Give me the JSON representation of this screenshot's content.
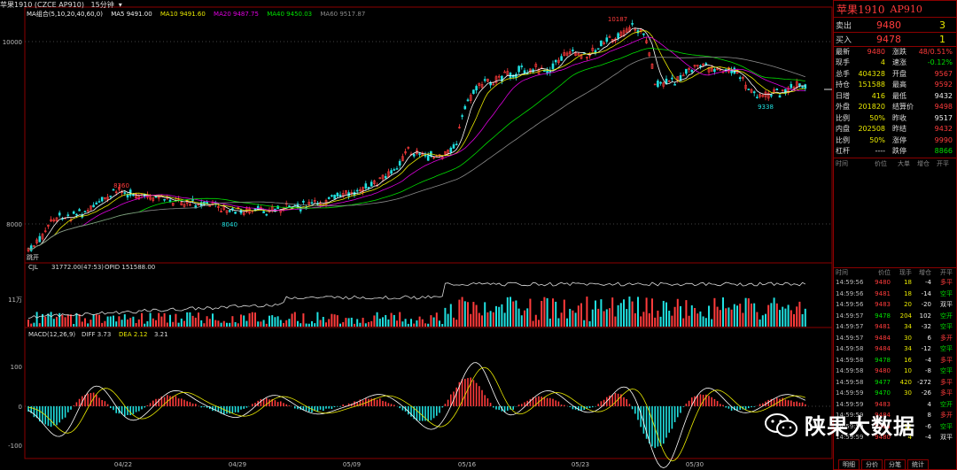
{
  "title_bar": {
    "symbol": "苹果1910 (CZCE AP910)",
    "period": "15分钟"
  },
  "main_header": {
    "ma_label": "MA组合(5,10,20,40,60,0)",
    "ma5": "MA5 9491.00",
    "ma10": "MA10 9491.60",
    "ma20": "MA20 9487.75",
    "ma40": "MA40 9450.03",
    "ma60": "MA60 9517.87"
  },
  "main_axis": {
    "tick_high": "10000",
    "tick_low": "8000",
    "label_high": "10187",
    "label_low1": "8040",
    "label_mid": "8360",
    "label_right_low": "9338",
    "label_start": "跳开"
  },
  "vol_header": {
    "name": "CJL",
    "value": "31772.00(47:53)",
    "opid": "OPID 151588.00",
    "axis": "11万"
  },
  "macd_header": {
    "name": "MACD(12,26,9)",
    "diff": "DIFF 3.73",
    "dea": "DEA 2.12",
    "macd": "3.21",
    "axis_pos": "100",
    "axis_zero": "0",
    "axis_neg": "-100"
  },
  "x_labels": [
    "04/22",
    "04/29",
    "05/09",
    "05/16",
    "05/23",
    "05/30"
  ],
  "instrument": {
    "name": "苹果1910",
    "code": "AP910"
  },
  "orderbook": [
    {
      "label": "卖出",
      "price": "9480",
      "qty": "3"
    },
    {
      "label": "买入",
      "price": "9478",
      "qty": "1"
    }
  ],
  "quote": [
    {
      "l1": "最新",
      "v1": "9480",
      "l2": "涨跌",
      "v2": "48/0.51%"
    },
    {
      "l1": "现手",
      "v1": "4",
      "l2": "速涨",
      "v2": "-0.12%"
    },
    {
      "l1": "总手",
      "v1": "404328",
      "l2": "开盘",
      "v2": "9567"
    },
    {
      "l1": "持仓",
      "v1": "151588",
      "l2": "最高",
      "v2": "9592"
    },
    {
      "l1": "日增",
      "v1": "416",
      "l2": "最低",
      "v2": "9432"
    },
    {
      "l1": "外盘",
      "v1": "201820",
      "l2": "结算价",
      "v2": "9498"
    },
    {
      "l1": "比例",
      "v1": "50%",
      "l2": "昨收",
      "v2": "9517"
    },
    {
      "l1": "内盘",
      "v1": "202508",
      "l2": "昨结",
      "v2": "9432"
    },
    {
      "l1": "比例",
      "v1": "50%",
      "l2": "涨停",
      "v2": "9990"
    },
    {
      "l1": "杠杆",
      "v1": "----",
      "l2": "跌停",
      "v2": "8866"
    }
  ],
  "trades_header": {
    "time": "时间",
    "price": "价位",
    "qty": "大单",
    "chg": "增仓",
    "type": "开平"
  },
  "ticks_header": {
    "time": "时间",
    "price": "价位",
    "qty": "现手",
    "chg": "增仓",
    "type": "开平"
  },
  "ticks": [
    {
      "t": "14:59:56",
      "p": "9480",
      "q": "18",
      "c": "-4",
      "k": "多平"
    },
    {
      "t": "14:59:56",
      "p": "9481",
      "q": "18",
      "c": "-14",
      "k": "空平"
    },
    {
      "t": "14:59:56",
      "p": "9483",
      "q": "20",
      "c": "-20",
      "k": "双平"
    },
    {
      "t": "14:59:57",
      "p": "9478",
      "q": "204",
      "c": "102",
      "k": "空开"
    },
    {
      "t": "14:59:57",
      "p": "9481",
      "q": "34",
      "c": "-32",
      "k": "空平"
    },
    {
      "t": "14:59:57",
      "p": "9484",
      "q": "30",
      "c": "6",
      "k": "多开"
    },
    {
      "t": "14:59:58",
      "p": "9484",
      "q": "34",
      "c": "-12",
      "k": "空平"
    },
    {
      "t": "14:59:58",
      "p": "9478",
      "q": "16",
      "c": "-4",
      "k": "多平"
    },
    {
      "t": "14:59:58",
      "p": "9480",
      "q": "10",
      "c": "-8",
      "k": "空平"
    },
    {
      "t": "14:59:58",
      "p": "9477",
      "q": "420",
      "c": "-272",
      "k": "多平"
    },
    {
      "t": "14:59:59",
      "p": "9470",
      "q": "30",
      "c": "-26",
      "k": "多平"
    },
    {
      "t": "14:59:59",
      "p": "9483",
      "q": "",
      "c": "4",
      "k": "空开"
    },
    {
      "t": "14:59:59",
      "p": "9484",
      "q": "",
      "c": "8",
      "k": "多开"
    },
    {
      "t": "14:59:59",
      "p": "9484",
      "q": "12",
      "c": "-6",
      "k": "空平"
    },
    {
      "t": "14:59:59",
      "p": "9480",
      "q": "4",
      "c": "-4",
      "k": "双平"
    }
  ],
  "bottom_tabs": [
    "明细",
    "分价",
    "分笔",
    "统计"
  ],
  "watermark": "陕果大数据",
  "colors": {
    "up": "#ff3b3b",
    "down": "#20e0e0",
    "border": "#8b0000",
    "ma5": "#ffffff",
    "ma10": "#e8e800",
    "ma20": "#e000e0",
    "ma40": "#00e000",
    "ma60": "#8a8a8a"
  }
}
